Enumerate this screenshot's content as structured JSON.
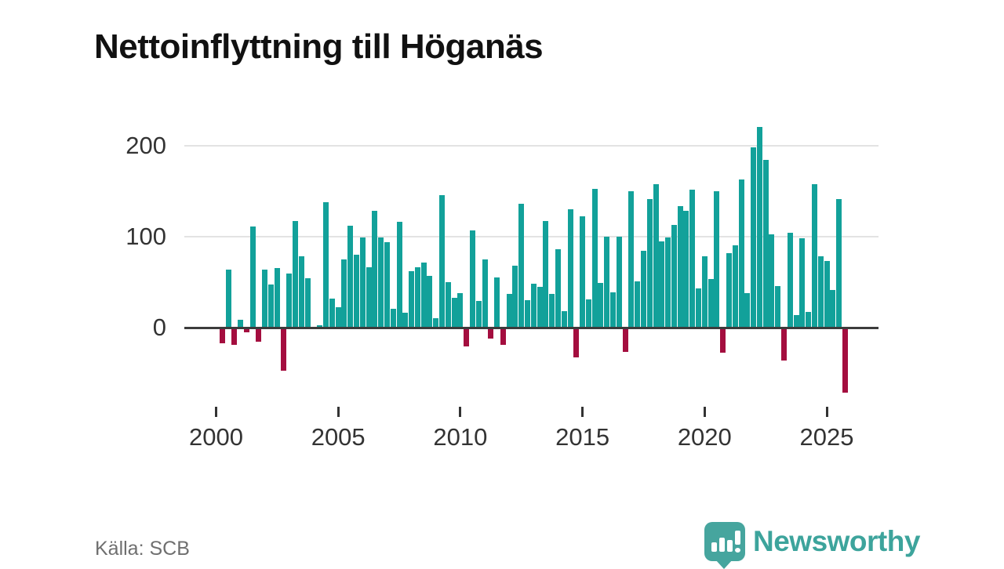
{
  "title": "Nettoinflyttning till Höganäs",
  "source": "Källa: SCB",
  "logo": {
    "text": "Newsworthy"
  },
  "colors": {
    "positive_bar": "#12a19a",
    "negative_bar": "#a40e3f",
    "title_text": "#111111",
    "axis_text": "#333333",
    "gridline": "#e3e3e3",
    "zero_line": "#3c3c3c",
    "source_text": "#6f6f6f",
    "logo_teal": "#46a59e"
  },
  "chart_data": {
    "type": "bar",
    "title": "Nettoinflyttning till Höganäs",
    "frequency": "quarterly",
    "period_start": "2000 Q1",
    "period_end": "2025 Q4",
    "x_tick_labels": [
      "2000",
      "2005",
      "2010",
      "2015",
      "2020",
      "2025"
    ],
    "y_ticks": [
      0,
      100,
      200
    ],
    "ylim": [
      -90,
      235
    ],
    "grid": "horizontal",
    "legend": "none",
    "years": [
      "2000",
      "2001",
      "2002",
      "2003",
      "2004",
      "2005",
      "2006",
      "2007",
      "2008",
      "2009",
      "2010",
      "2011",
      "2012",
      "2013",
      "2014",
      "2015",
      "2016",
      "2017",
      "2018",
      "2019",
      "2020",
      "2021",
      "2022",
      "2023",
      "2024",
      "2025"
    ],
    "quarterly_values_by_year": {
      "2000": [
        0,
        -16,
        64,
        -18
      ],
      "2001": [
        9,
        -4,
        111,
        -14
      ],
      "2002": [
        64,
        47,
        65,
        -46
      ],
      "2003": [
        59,
        117,
        78,
        54
      ],
      "2004": [
        0,
        3,
        138,
        32
      ],
      "2005": [
        22,
        75,
        112,
        80
      ],
      "2006": [
        99,
        66,
        128,
        99
      ],
      "2007": [
        94,
        21,
        116,
        16
      ],
      "2008": [
        62,
        66,
        71,
        57
      ],
      "2009": [
        10,
        145,
        50,
        33
      ],
      "2010": [
        38,
        -19,
        107,
        29
      ],
      "2011": [
        75,
        -11,
        55,
        -18
      ],
      "2012": [
        37,
        68,
        136,
        30
      ],
      "2013": [
        48,
        45,
        117,
        37
      ],
      "2014": [
        86,
        18,
        130,
        -31
      ],
      "2015": [
        122,
        31,
        152,
        49
      ],
      "2016": [
        100,
        39,
        100,
        -25
      ],
      "2017": [
        150,
        51,
        84,
        141
      ],
      "2018": [
        157,
        95,
        99,
        113
      ],
      "2019": [
        133,
        128,
        151,
        43
      ],
      "2020": [
        78,
        53,
        150,
        -26
      ],
      "2021": [
        82,
        90,
        163,
        38
      ],
      "2022": [
        198,
        220,
        184,
        102
      ],
      "2023": [
        46,
        -35,
        104,
        14
      ],
      "2024": [
        98,
        17,
        157,
        78
      ],
      "2025": [
        73,
        41,
        141,
        -70
      ]
    }
  }
}
